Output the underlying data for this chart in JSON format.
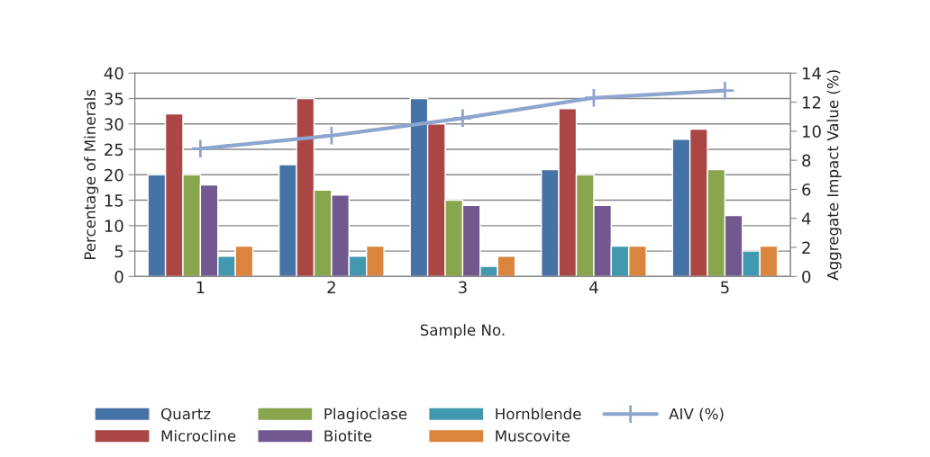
{
  "chart_data": {
    "type": "bar",
    "xlabel": "Sample No.",
    "ylabel": "Percentage of Minerals",
    "y2label": "Aggregate Impact Value (%)",
    "categories": [
      "1",
      "2",
      "3",
      "4",
      "5"
    ],
    "series": [
      {
        "name": "Quartz",
        "color": "#4572a7",
        "values": [
          20,
          22,
          35,
          21,
          27
        ]
      },
      {
        "name": "Microcline",
        "color": "#aa4643",
        "values": [
          32,
          35,
          30,
          33,
          29
        ]
      },
      {
        "name": "Plagioclase",
        "color": "#89a54e",
        "values": [
          20,
          17,
          15,
          20,
          21
        ]
      },
      {
        "name": "Biotite",
        "color": "#71588f",
        "values": [
          18,
          16,
          14,
          14,
          12
        ]
      },
      {
        "name": "Hornblende",
        "color": "#4198af",
        "values": [
          4,
          4,
          2,
          6,
          5
        ]
      },
      {
        "name": "Muscovite",
        "color": "#db843d",
        "values": [
          6,
          6,
          4,
          6,
          6
        ]
      },
      {
        "name": "AIV (%)",
        "color": "#8ea5cf",
        "type": "line",
        "axis": "y2",
        "marker": "cross",
        "values": [
          8.8,
          9.7,
          10.9,
          12.3,
          12.8
        ]
      }
    ],
    "ylim": [
      0,
      40
    ],
    "yticks": [
      0,
      5,
      10,
      15,
      20,
      25,
      30,
      35,
      40
    ],
    "y2lim": [
      0,
      14
    ],
    "y2ticks": [
      0,
      2,
      4,
      6,
      8,
      10,
      12,
      14
    ],
    "grid": "y",
    "legend": "bottom"
  }
}
